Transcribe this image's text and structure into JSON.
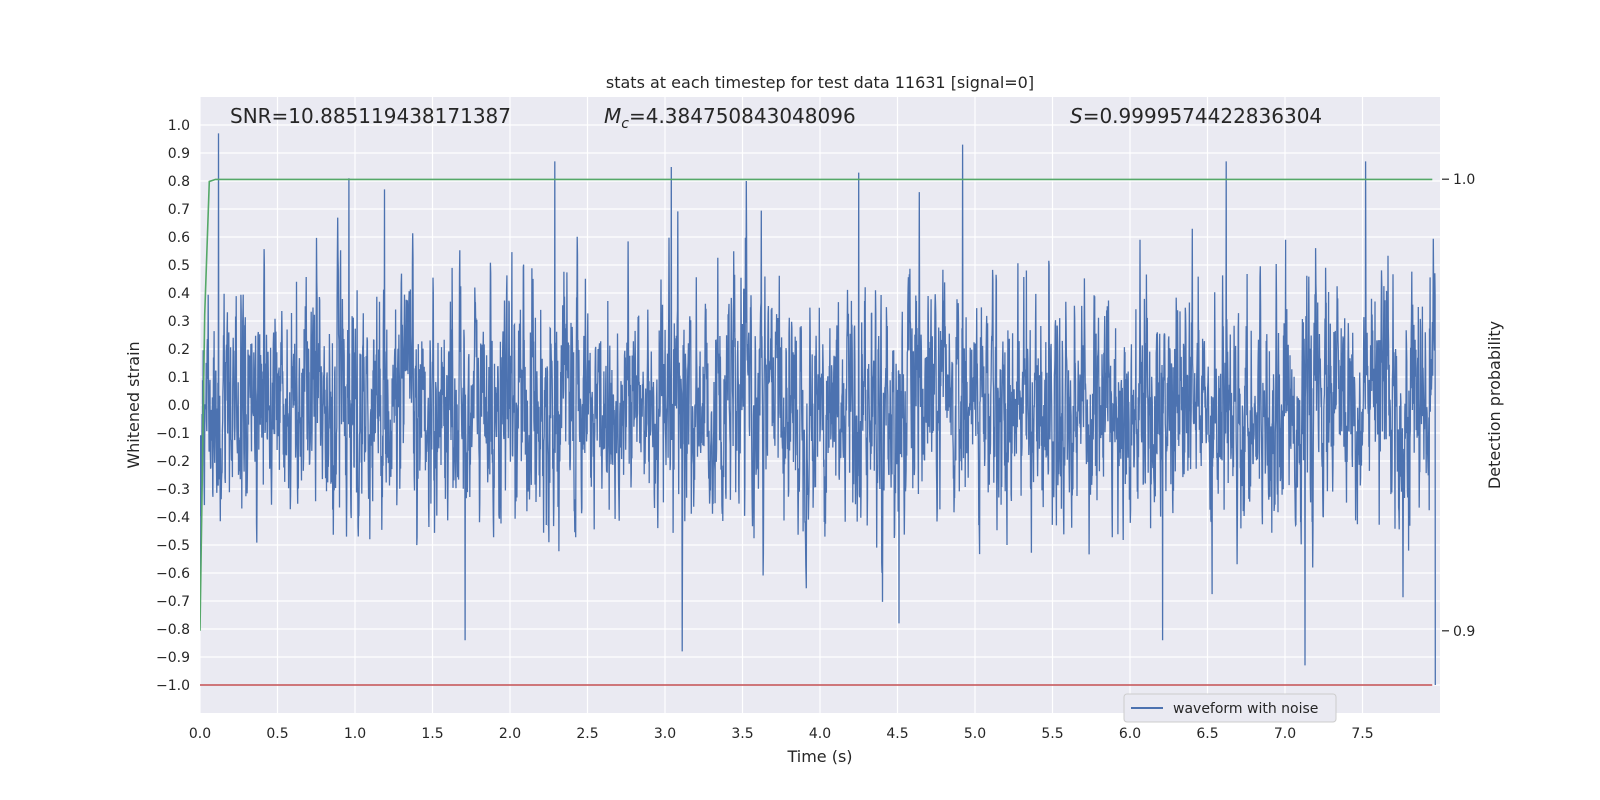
{
  "chart_data": {
    "type": "line",
    "title": "stats at each timestep for test data 11631 [signal=0]",
    "xlabel": "Time (s)",
    "ylabel": "Whitened strain",
    "y2label": "Detection probability",
    "xlim": [
      0.0,
      8.0
    ],
    "ylim": [
      -1.1,
      1.1
    ],
    "y2lim": [
      0.8818,
      1.0182
    ],
    "xticks": [
      "0.0",
      "0.5",
      "1.0",
      "1.5",
      "2.0",
      "2.5",
      "3.0",
      "3.5",
      "4.0",
      "4.5",
      "5.0",
      "5.5",
      "6.0",
      "6.5",
      "7.0",
      "7.5"
    ],
    "yticks": [
      "1.0",
      "0.9",
      "0.8",
      "0.7",
      "0.6",
      "0.5",
      "0.4",
      "0.3",
      "0.2",
      "0.1",
      "0.0",
      "−0.1",
      "−0.2",
      "−0.3",
      "−0.4",
      "−0.5",
      "−0.6",
      "−0.7",
      "−0.8",
      "−0.9",
      "−1.0"
    ],
    "y2ticks": [
      "1.0",
      "0.9"
    ],
    "grid": true,
    "legend_position": "lower right",
    "annotations": {
      "snr": "SNR=10.885119438171387",
      "mc_prefix": "M",
      "mc_sub": "c",
      "mc_value": "=4.384750843048096",
      "s_prefix": "S",
      "s_value": "=0.9999574422836304"
    },
    "series": [
      {
        "name": "waveform with noise",
        "color": "#4c72b0",
        "axis": "left",
        "noise_description": "dense whitened strain noise, ~Gaussian, std ≈ 0.2, extremes ≈ ±0.95",
        "peaks": [
          {
            "x": 0.12,
            "y": 0.97
          },
          {
            "x": 0.96,
            "y": 0.81
          },
          {
            "x": 1.19,
            "y": 0.77
          },
          {
            "x": 2.29,
            "y": 0.87
          },
          {
            "x": 3.04,
            "y": 0.85
          },
          {
            "x": 4.25,
            "y": 0.83
          },
          {
            "x": 4.92,
            "y": 0.93
          },
          {
            "x": 6.62,
            "y": 0.87
          },
          {
            "x": 7.52,
            "y": 0.87
          },
          {
            "x": 1.71,
            "y": -0.84
          },
          {
            "x": 3.11,
            "y": -0.88
          },
          {
            "x": 4.51,
            "y": -0.78
          },
          {
            "x": 6.21,
            "y": -0.84
          },
          {
            "x": 7.13,
            "y": -0.93
          },
          {
            "x": 7.97,
            "y": -1.0
          }
        ]
      },
      {
        "name": "",
        "color": "#55a868",
        "axis": "right",
        "x": [
          0.0,
          0.03,
          0.06,
          0.1,
          7.95
        ],
        "y": [
          0.9,
          0.97,
          0.9995,
          0.99996,
          0.99996
        ]
      },
      {
        "name": "",
        "color": "#c44e52",
        "axis": "left",
        "x": [
          0.0,
          7.95
        ],
        "y": [
          -1.0,
          -1.0
        ]
      }
    ]
  }
}
